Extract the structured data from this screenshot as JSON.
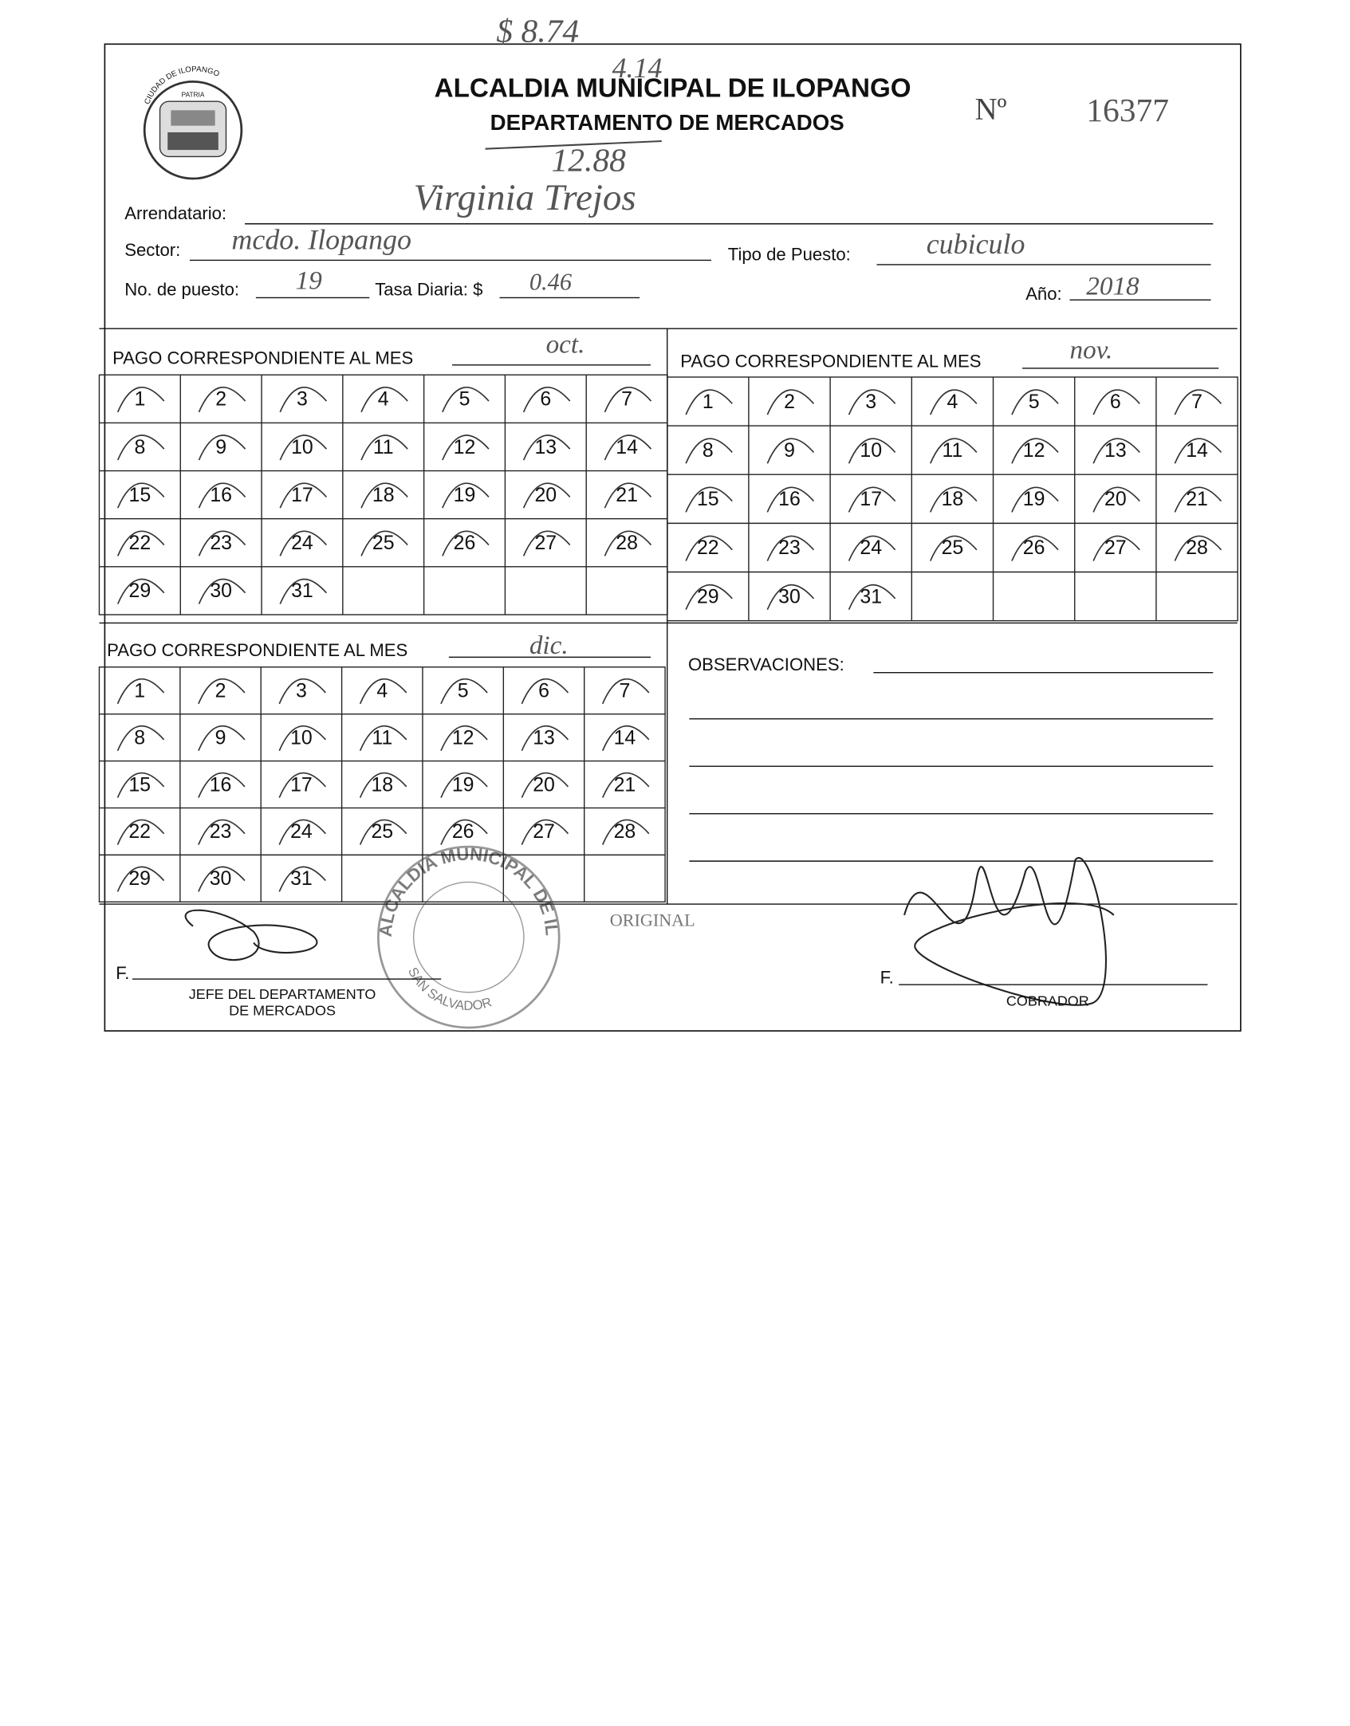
{
  "header": {
    "title": "ALCALDIA MUNICIPAL DE ILOPANGO",
    "subtitle": "DEPARTAMENTO DE MERCADOS",
    "number_label": "Nº",
    "number": "16377",
    "logo_text": "CIUDAD DE ILOPANGO",
    "logo_motto": "PATRIA"
  },
  "annotations": [
    "$ 8.74",
    "4.14",
    "12.88"
  ],
  "fields": {
    "arrendatario": {
      "label": "Arrendatario:",
      "value": "Virginia Trejos"
    },
    "sector": {
      "label": "Sector:",
      "value": "mcdo. Ilopango"
    },
    "tipo_de_puesto": {
      "label": "Tipo de Puesto:",
      "value": "cubiculo"
    },
    "no_de_puesto": {
      "label": "No. de puesto:",
      "value": "19"
    },
    "tasa_diaria": {
      "label": "Tasa Diaria: $",
      "value": "0.46"
    },
    "anio": {
      "label": "Año:",
      "value": "2018"
    }
  },
  "months": [
    {
      "label": "PAGO CORRESPONDIENTE AL MES",
      "value": "oct.",
      "days": [
        1,
        2,
        3,
        4,
        5,
        6,
        7,
        8,
        9,
        10,
        11,
        12,
        13,
        14,
        15,
        16,
        17,
        18,
        19,
        20,
        21,
        22,
        23,
        24,
        25,
        26,
        27,
        28,
        29,
        30,
        31
      ]
    },
    {
      "label": "PAGO CORRESPONDIENTE AL MES",
      "value": "nov.",
      "days": [
        1,
        2,
        3,
        4,
        5,
        6,
        7,
        8,
        9,
        10,
        11,
        12,
        13,
        14,
        15,
        16,
        17,
        18,
        19,
        20,
        21,
        22,
        23,
        24,
        25,
        26,
        27,
        28,
        29,
        30,
        31
      ]
    },
    {
      "label": "PAGO CORRESPONDIENTE AL MES",
      "value": "dic.",
      "days": [
        1,
        2,
        3,
        4,
        5,
        6,
        7,
        8,
        9,
        10,
        11,
        12,
        13,
        14,
        15,
        16,
        17,
        18,
        19,
        20,
        21,
        22,
        23,
        24,
        25,
        26,
        27,
        28,
        29,
        30,
        31
      ]
    }
  ],
  "observations": {
    "label": "OBSERVACIONES:"
  },
  "signatures": {
    "left": {
      "prefix": "F.",
      "title": [
        "JEFE DEL DEPARTAMENTO",
        "DE MERCADOS"
      ]
    },
    "right": {
      "prefix": "F.",
      "title": "COBRADOR"
    }
  },
  "stamp": {
    "text": "ORIGINAL",
    "seal": "ALCALDIA MUNICIPAL DE ILOPANGO",
    "seal_city": "SAN SALVADOR"
  }
}
